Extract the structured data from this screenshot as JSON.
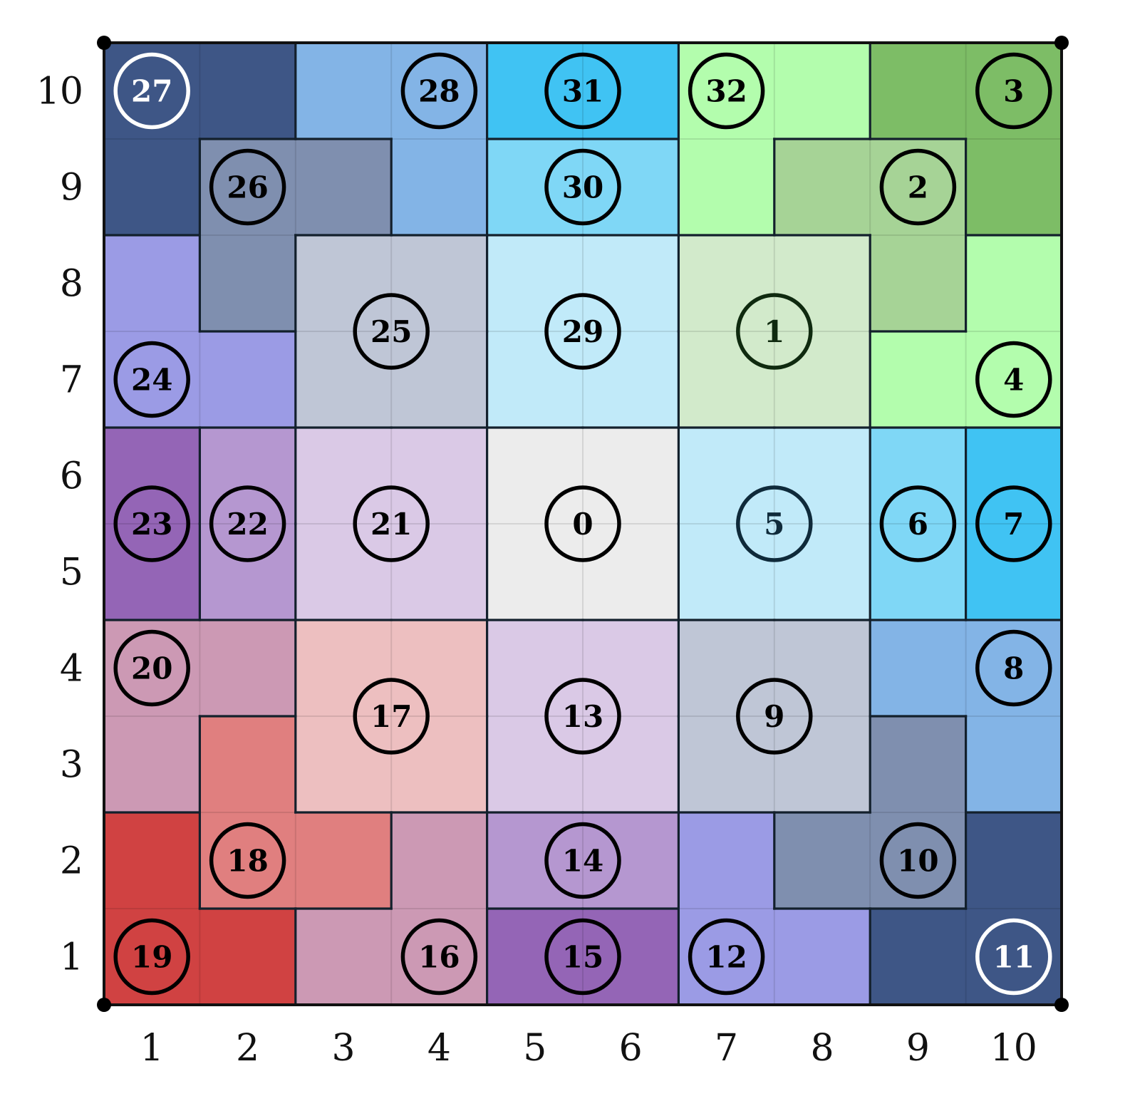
{
  "grid": {
    "cols": 10,
    "rows": 10
  },
  "x_labels": [
    "1",
    "2",
    "3",
    "4",
    "5",
    "6",
    "7",
    "8",
    "9",
    "10"
  ],
  "y_labels": [
    "1",
    "2",
    "3",
    "4",
    "5",
    "6",
    "7",
    "8",
    "9",
    "10"
  ],
  "regions": [
    {
      "id": "0",
      "color": "#ececec",
      "cells": [
        [
          5,
          5
        ],
        [
          6,
          5
        ],
        [
          5,
          6
        ],
        [
          6,
          6
        ]
      ],
      "label_at": [
        5.5,
        5.5
      ],
      "ring": "#000000",
      "text": "#000000"
    },
    {
      "id": "1",
      "color": "#d2eacb",
      "cells": [
        [
          7,
          7
        ],
        [
          8,
          7
        ],
        [
          7,
          8
        ],
        [
          8,
          8
        ]
      ],
      "label_at": [
        7.5,
        7.5
      ],
      "ring": "#0f2a0f",
      "text": "#0f2a0f"
    },
    {
      "id": "2",
      "color": "#a6d396",
      "cells": [
        [
          8,
          9
        ],
        [
          9,
          9
        ],
        [
          9,
          8
        ]
      ],
      "label_at": [
        9,
        9
      ],
      "ring": "#000000",
      "text": "#000000"
    },
    {
      "id": "3",
      "color": "#7dbd66",
      "cells": [
        [
          9,
          10
        ],
        [
          10,
          10
        ],
        [
          10,
          9
        ]
      ],
      "label_at": [
        10,
        10
      ],
      "ring": "#000000",
      "text": "#000000"
    },
    {
      "id": "4",
      "color": "#b3fdad",
      "cells": [
        [
          10,
          8
        ],
        [
          9,
          7
        ],
        [
          10,
          7
        ]
      ],
      "label_at": [
        10,
        7
      ],
      "ring": "#000000",
      "text": "#000000"
    },
    {
      "id": "5",
      "color": "#c1eaf9",
      "cells": [
        [
          7,
          5
        ],
        [
          8,
          5
        ],
        [
          7,
          6
        ],
        [
          8,
          6
        ]
      ],
      "label_at": [
        7.5,
        5.5
      ],
      "ring": "#0f2a3a",
      "text": "#0f2a3a"
    },
    {
      "id": "6",
      "color": "#7fd7f6",
      "cells": [
        [
          9,
          5
        ],
        [
          9,
          6
        ]
      ],
      "label_at": [
        9,
        5.5
      ],
      "ring": "#000000",
      "text": "#000000"
    },
    {
      "id": "7",
      "color": "#40c3f3",
      "cells": [
        [
          10,
          5
        ],
        [
          10,
          6
        ]
      ],
      "label_at": [
        10,
        5.5
      ],
      "ring": "#000000",
      "text": "#000000"
    },
    {
      "id": "8",
      "color": "#83b4e6",
      "cells": [
        [
          9,
          4
        ],
        [
          10,
          4
        ],
        [
          10,
          3
        ]
      ],
      "label_at": [
        10,
        4
      ],
      "ring": "#000000",
      "text": "#000000"
    },
    {
      "id": "9",
      "color": "#bfc6d6",
      "cells": [
        [
          7,
          3
        ],
        [
          8,
          3
        ],
        [
          7,
          4
        ],
        [
          8,
          4
        ]
      ],
      "label_at": [
        7.5,
        3.5
      ],
      "ring": "#000000",
      "text": "#000000"
    },
    {
      "id": "10",
      "color": "#7f8faf",
      "cells": [
        [
          9,
          3
        ],
        [
          8,
          2
        ],
        [
          9,
          2
        ]
      ],
      "label_at": [
        9,
        2
      ],
      "ring": "#000000",
      "text": "#000000"
    },
    {
      "id": "11",
      "color": "#3e5686",
      "cells": [
        [
          10,
          2
        ],
        [
          9,
          1
        ],
        [
          10,
          1
        ]
      ],
      "label_at": [
        10,
        1
      ],
      "ring": "#ffffff",
      "text": "#ffffff"
    },
    {
      "id": "12",
      "color": "#9b9be5",
      "cells": [
        [
          7,
          2
        ],
        [
          7,
          1
        ],
        [
          8,
          1
        ]
      ],
      "label_at": [
        7,
        1
      ],
      "ring": "#000000",
      "text": "#000000"
    },
    {
      "id": "13",
      "color": "#dac9e6",
      "cells": [
        [
          5,
          3
        ],
        [
          6,
          3
        ],
        [
          5,
          4
        ],
        [
          6,
          4
        ]
      ],
      "label_at": [
        5.5,
        3.5
      ],
      "ring": "#000000",
      "text": "#000000"
    },
    {
      "id": "14",
      "color": "#b597d0",
      "cells": [
        [
          5,
          2
        ],
        [
          6,
          2
        ]
      ],
      "label_at": [
        5.5,
        2
      ],
      "ring": "#000000",
      "text": "#000000"
    },
    {
      "id": "15",
      "color": "#9465b6",
      "cells": [
        [
          5,
          1
        ],
        [
          6,
          1
        ]
      ],
      "label_at": [
        5.5,
        1
      ],
      "ring": "#000000",
      "text": "#000000"
    },
    {
      "id": "16",
      "color": "#cc99b4",
      "cells": [
        [
          4,
          2
        ],
        [
          3,
          1
        ],
        [
          4,
          1
        ]
      ],
      "label_at": [
        4,
        1
      ],
      "ring": "#000000",
      "text": "#000000"
    },
    {
      "id": "17",
      "color": "#edbfc0",
      "cells": [
        [
          3,
          3
        ],
        [
          4,
          3
        ],
        [
          3,
          4
        ],
        [
          4,
          4
        ]
      ],
      "label_at": [
        3.5,
        3.5
      ],
      "ring": "#000000",
      "text": "#000000"
    },
    {
      "id": "18",
      "color": "#e07f7f",
      "cells": [
        [
          2,
          3
        ],
        [
          2,
          2
        ],
        [
          3,
          2
        ]
      ],
      "label_at": [
        2,
        2
      ],
      "ring": "#000000",
      "text": "#000000"
    },
    {
      "id": "19",
      "color": "#d04242",
      "cells": [
        [
          1,
          2
        ],
        [
          1,
          1
        ],
        [
          2,
          1
        ]
      ],
      "label_at": [
        1,
        1
      ],
      "ring": "#000000",
      "text": "#000000"
    },
    {
      "id": "20",
      "color": "#cc99b4",
      "cells": [
        [
          1,
          4
        ],
        [
          2,
          4
        ],
        [
          1,
          3
        ]
      ],
      "label_at": [
        1,
        4
      ],
      "ring": "#000000",
      "text": "#000000"
    },
    {
      "id": "21",
      "color": "#dac9e6",
      "cells": [
        [
          3,
          5
        ],
        [
          4,
          5
        ],
        [
          3,
          6
        ],
        [
          4,
          6
        ]
      ],
      "label_at": [
        3.5,
        5.5
      ],
      "ring": "#000000",
      "text": "#000000"
    },
    {
      "id": "22",
      "color": "#b597d0",
      "cells": [
        [
          2,
          5
        ],
        [
          2,
          6
        ]
      ],
      "label_at": [
        2,
        5.5
      ],
      "ring": "#000000",
      "text": "#000000"
    },
    {
      "id": "23",
      "color": "#9465b6",
      "cells": [
        [
          1,
          5
        ],
        [
          1,
          6
        ]
      ],
      "label_at": [
        1,
        5.5
      ],
      "ring": "#000000",
      "text": "#000000"
    },
    {
      "id": "24",
      "color": "#9b9be5",
      "cells": [
        [
          1,
          8
        ],
        [
          1,
          7
        ],
        [
          2,
          7
        ]
      ],
      "label_at": [
        1,
        7
      ],
      "ring": "#000000",
      "text": "#000000"
    },
    {
      "id": "25",
      "color": "#bfc6d6",
      "cells": [
        [
          3,
          7
        ],
        [
          4,
          7
        ],
        [
          3,
          8
        ],
        [
          4,
          8
        ]
      ],
      "label_at": [
        3.5,
        7.5
      ],
      "ring": "#000000",
      "text": "#000000"
    },
    {
      "id": "26",
      "color": "#7f8faf",
      "cells": [
        [
          2,
          9
        ],
        [
          3,
          9
        ],
        [
          2,
          8
        ]
      ],
      "label_at": [
        2,
        9
      ],
      "ring": "#000000",
      "text": "#000000"
    },
    {
      "id": "27",
      "color": "#3e5686",
      "cells": [
        [
          1,
          10
        ],
        [
          2,
          10
        ],
        [
          1,
          9
        ]
      ],
      "label_at": [
        1,
        10
      ],
      "ring": "#ffffff",
      "text": "#ffffff"
    },
    {
      "id": "28",
      "color": "#83b4e6",
      "cells": [
        [
          3,
          10
        ],
        [
          4,
          10
        ],
        [
          4,
          9
        ]
      ],
      "label_at": [
        4,
        10
      ],
      "ring": "#000000",
      "text": "#000000"
    },
    {
      "id": "29",
      "color": "#c1eaf9",
      "cells": [
        [
          5,
          7
        ],
        [
          6,
          7
        ],
        [
          5,
          8
        ],
        [
          6,
          8
        ]
      ],
      "label_at": [
        5.5,
        7.5
      ],
      "ring": "#000000",
      "text": "#000000"
    },
    {
      "id": "30",
      "color": "#7fd7f6",
      "cells": [
        [
          5,
          9
        ],
        [
          6,
          9
        ]
      ],
      "label_at": [
        5.5,
        9
      ],
      "ring": "#000000",
      "text": "#000000"
    },
    {
      "id": "31",
      "color": "#40c3f3",
      "cells": [
        [
          5,
          10
        ],
        [
          6,
          10
        ]
      ],
      "label_at": [
        5.5,
        10
      ],
      "ring": "#000000",
      "text": "#000000"
    },
    {
      "id": "32",
      "color": "#b3fdad",
      "cells": [
        [
          7,
          10
        ],
        [
          8,
          10
        ],
        [
          7,
          9
        ]
      ],
      "label_at": [
        7,
        10
      ],
      "ring": "#000000",
      "text": "#000000"
    }
  ]
}
